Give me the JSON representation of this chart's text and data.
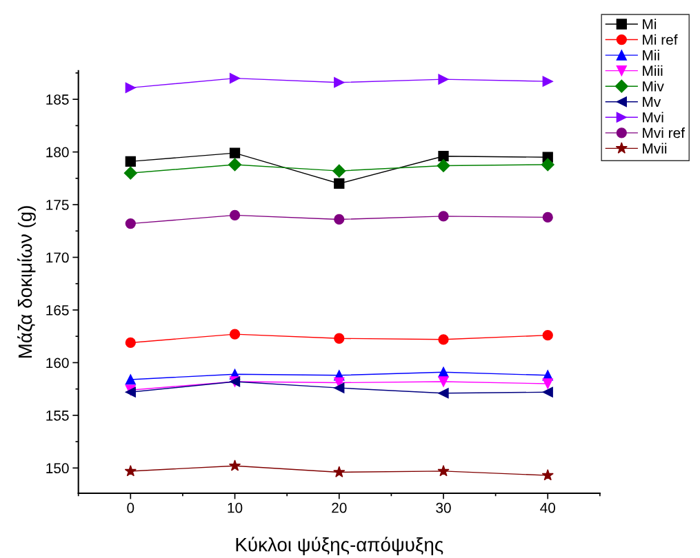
{
  "chart_data": {
    "type": "line",
    "xlabel": "Κύκλοι ψύξης-απόψυξης",
    "ylabel": "Μάζα δοκιμίων (g)",
    "x": [
      0,
      10,
      20,
      30,
      40
    ],
    "xlim": [
      -5,
      45
    ],
    "xticks": [
      0,
      10,
      20,
      30,
      40
    ],
    "ylim": [
      147.6,
      187.7
    ],
    "yticks": [
      150,
      155,
      160,
      165,
      170,
      175,
      180,
      185
    ],
    "grid": false,
    "legend": "top right",
    "line_style": "solid",
    "series": [
      {
        "name": "Mi",
        "color": "#000000",
        "marker": "square",
        "values": [
          179.1,
          179.9,
          177.0,
          179.6,
          179.5
        ]
      },
      {
        "name": "Mi ref",
        "color": "#ff0000",
        "marker": "circle",
        "values": [
          161.9,
          162.7,
          162.3,
          162.2,
          162.6
        ]
      },
      {
        "name": "Mii",
        "color": "#0000ff",
        "marker": "triangle",
        "values": [
          158.4,
          158.9,
          158.8,
          159.1,
          158.8
        ]
      },
      {
        "name": "Miii",
        "color": "#ff00ff",
        "marker": "triangle_down",
        "values": [
          157.4,
          158.2,
          158.1,
          158.2,
          158.0
        ]
      },
      {
        "name": "Miv",
        "color": "#008000",
        "marker": "diamond",
        "values": [
          178.0,
          178.8,
          178.2,
          178.7,
          178.8
        ]
      },
      {
        "name": "Mv",
        "color": "#000080",
        "marker": "triangle_left",
        "values": [
          157.2,
          158.2,
          157.6,
          157.1,
          157.2
        ]
      },
      {
        "name": "Mvi",
        "color": "#8000ff",
        "marker": "triangle_right",
        "values": [
          186.1,
          187.0,
          186.6,
          186.9,
          186.7
        ]
      },
      {
        "name": "Mvi ref",
        "color": "#800080",
        "marker": "circle",
        "values": [
          173.2,
          174.0,
          173.6,
          173.9,
          173.8
        ]
      },
      {
        "name": "Mvii",
        "color": "#800000",
        "marker": "star",
        "values": [
          149.7,
          150.2,
          149.6,
          149.7,
          149.3
        ]
      }
    ]
  }
}
